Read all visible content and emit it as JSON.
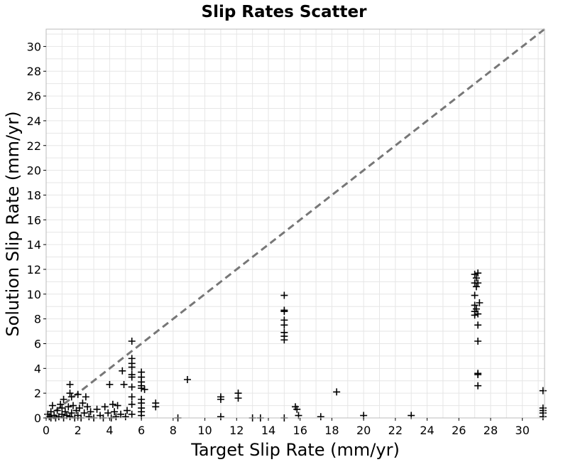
{
  "chart_data": {
    "type": "scatter",
    "title": "Slip Rates Scatter",
    "xlabel": "Target Slip Rate (mm/yr)",
    "ylabel": "Solution Slip Rate (mm/yr)",
    "xlim": [
      0,
      31.4
    ],
    "ylim": [
      0,
      31.4
    ],
    "xticks": [
      0,
      2,
      4,
      6,
      8,
      10,
      12,
      14,
      16,
      18,
      20,
      22,
      24,
      26,
      28,
      30
    ],
    "yticks": [
      0,
      2,
      4,
      6,
      8,
      10,
      12,
      14,
      16,
      18,
      20,
      22,
      24,
      26,
      28,
      30
    ],
    "grid": true,
    "marker": "plus",
    "reference_line": {
      "style": "dashed",
      "color": "#777777",
      "x": [
        0,
        31.4
      ],
      "y": [
        0,
        31.4
      ]
    },
    "series": [
      {
        "color": "#000000",
        "points": [
          [
            0.1,
            0.3
          ],
          [
            0.2,
            0.1
          ],
          [
            0.3,
            0.0
          ],
          [
            0.3,
            0.5
          ],
          [
            0.4,
            1.0
          ],
          [
            0.5,
            0.2
          ],
          [
            0.6,
            0.0
          ],
          [
            0.7,
            0.6
          ],
          [
            0.8,
            0.1
          ],
          [
            0.9,
            1.1
          ],
          [
            1.0,
            0.3
          ],
          [
            1.0,
            0.8
          ],
          [
            1.1,
            0.0
          ],
          [
            1.1,
            1.5
          ],
          [
            1.2,
            0.5
          ],
          [
            1.3,
            0.2
          ],
          [
            1.4,
            0.9
          ],
          [
            1.5,
            0.1
          ],
          [
            1.5,
            2.0
          ],
          [
            1.5,
            2.7
          ],
          [
            1.6,
            1.7
          ],
          [
            1.6,
            0.4
          ],
          [
            1.7,
            1.0
          ],
          [
            1.8,
            0.0
          ],
          [
            1.9,
            0.6
          ],
          [
            2.0,
            0.2
          ],
          [
            2.0,
            1.9
          ],
          [
            2.1,
            0.8
          ],
          [
            2.2,
            0.0
          ],
          [
            2.3,
            1.2
          ],
          [
            2.4,
            0.4
          ],
          [
            2.5,
            1.7
          ],
          [
            2.6,
            0.9
          ],
          [
            2.7,
            0.1
          ],
          [
            2.8,
            0.5
          ],
          [
            3.0,
            0.0
          ],
          [
            3.2,
            0.7
          ],
          [
            3.4,
            0.2
          ],
          [
            3.6,
            0.0
          ],
          [
            3.7,
            0.9
          ],
          [
            3.9,
            0.4
          ],
          [
            4.0,
            2.7
          ],
          [
            4.1,
            0.0
          ],
          [
            4.2,
            1.1
          ],
          [
            4.3,
            0.5
          ],
          [
            4.4,
            0.1
          ],
          [
            4.5,
            1.0
          ],
          [
            4.7,
            0.3
          ],
          [
            4.8,
            3.8
          ],
          [
            4.9,
            2.7
          ],
          [
            5.0,
            0.1
          ],
          [
            5.1,
            0.6
          ],
          [
            5.4,
            6.2
          ],
          [
            5.4,
            4.8
          ],
          [
            5.4,
            4.4
          ],
          [
            5.4,
            4.1
          ],
          [
            5.4,
            3.5
          ],
          [
            5.4,
            3.3
          ],
          [
            5.4,
            2.5
          ],
          [
            5.4,
            1.7
          ],
          [
            5.4,
            1.1
          ],
          [
            5.4,
            0.3
          ],
          [
            6.0,
            3.7
          ],
          [
            6.0,
            3.3
          ],
          [
            6.0,
            2.9
          ],
          [
            6.0,
            2.6
          ],
          [
            6.0,
            2.4
          ],
          [
            6.0,
            1.5
          ],
          [
            6.0,
            1.2
          ],
          [
            6.0,
            0.8
          ],
          [
            6.0,
            0.5
          ],
          [
            6.0,
            0.2
          ],
          [
            6.2,
            2.3
          ],
          [
            6.9,
            1.2
          ],
          [
            6.9,
            0.9
          ],
          [
            8.3,
            0.0
          ],
          [
            8.9,
            3.1
          ],
          [
            11.0,
            1.7
          ],
          [
            11.0,
            1.5
          ],
          [
            11.0,
            0.1
          ],
          [
            12.1,
            2.0
          ],
          [
            12.1,
            1.6
          ],
          [
            13.0,
            0.0
          ],
          [
            13.5,
            0.0
          ],
          [
            15.0,
            9.9
          ],
          [
            15.0,
            8.7
          ],
          [
            15.0,
            8.6
          ],
          [
            15.0,
            7.9
          ],
          [
            15.0,
            7.5
          ],
          [
            15.0,
            6.9
          ],
          [
            15.0,
            6.6
          ],
          [
            15.0,
            6.3
          ],
          [
            15.0,
            0.0
          ],
          [
            15.7,
            0.9
          ],
          [
            15.8,
            0.7
          ],
          [
            15.9,
            0.2
          ],
          [
            17.3,
            0.1
          ],
          [
            18.3,
            2.1
          ],
          [
            20.0,
            0.2
          ],
          [
            23.0,
            0.2
          ],
          [
            27.0,
            11.6
          ],
          [
            27.1,
            11.3
          ],
          [
            27.2,
            11.7
          ],
          [
            27.0,
            10.9
          ],
          [
            27.1,
            10.6
          ],
          [
            27.2,
            10.9
          ],
          [
            27.0,
            9.9
          ],
          [
            27.3,
            9.3
          ],
          [
            27.0,
            9.1
          ],
          [
            27.1,
            8.8
          ],
          [
            27.0,
            8.6
          ],
          [
            27.2,
            8.4
          ],
          [
            27.0,
            8.3
          ],
          [
            27.2,
            7.5
          ],
          [
            27.2,
            6.2
          ],
          [
            27.2,
            3.6
          ],
          [
            27.2,
            3.5
          ],
          [
            27.2,
            2.6
          ],
          [
            31.3,
            2.2
          ],
          [
            31.3,
            0.8
          ],
          [
            31.3,
            0.6
          ],
          [
            31.3,
            0.4
          ],
          [
            31.3,
            0.1
          ]
        ]
      }
    ]
  }
}
